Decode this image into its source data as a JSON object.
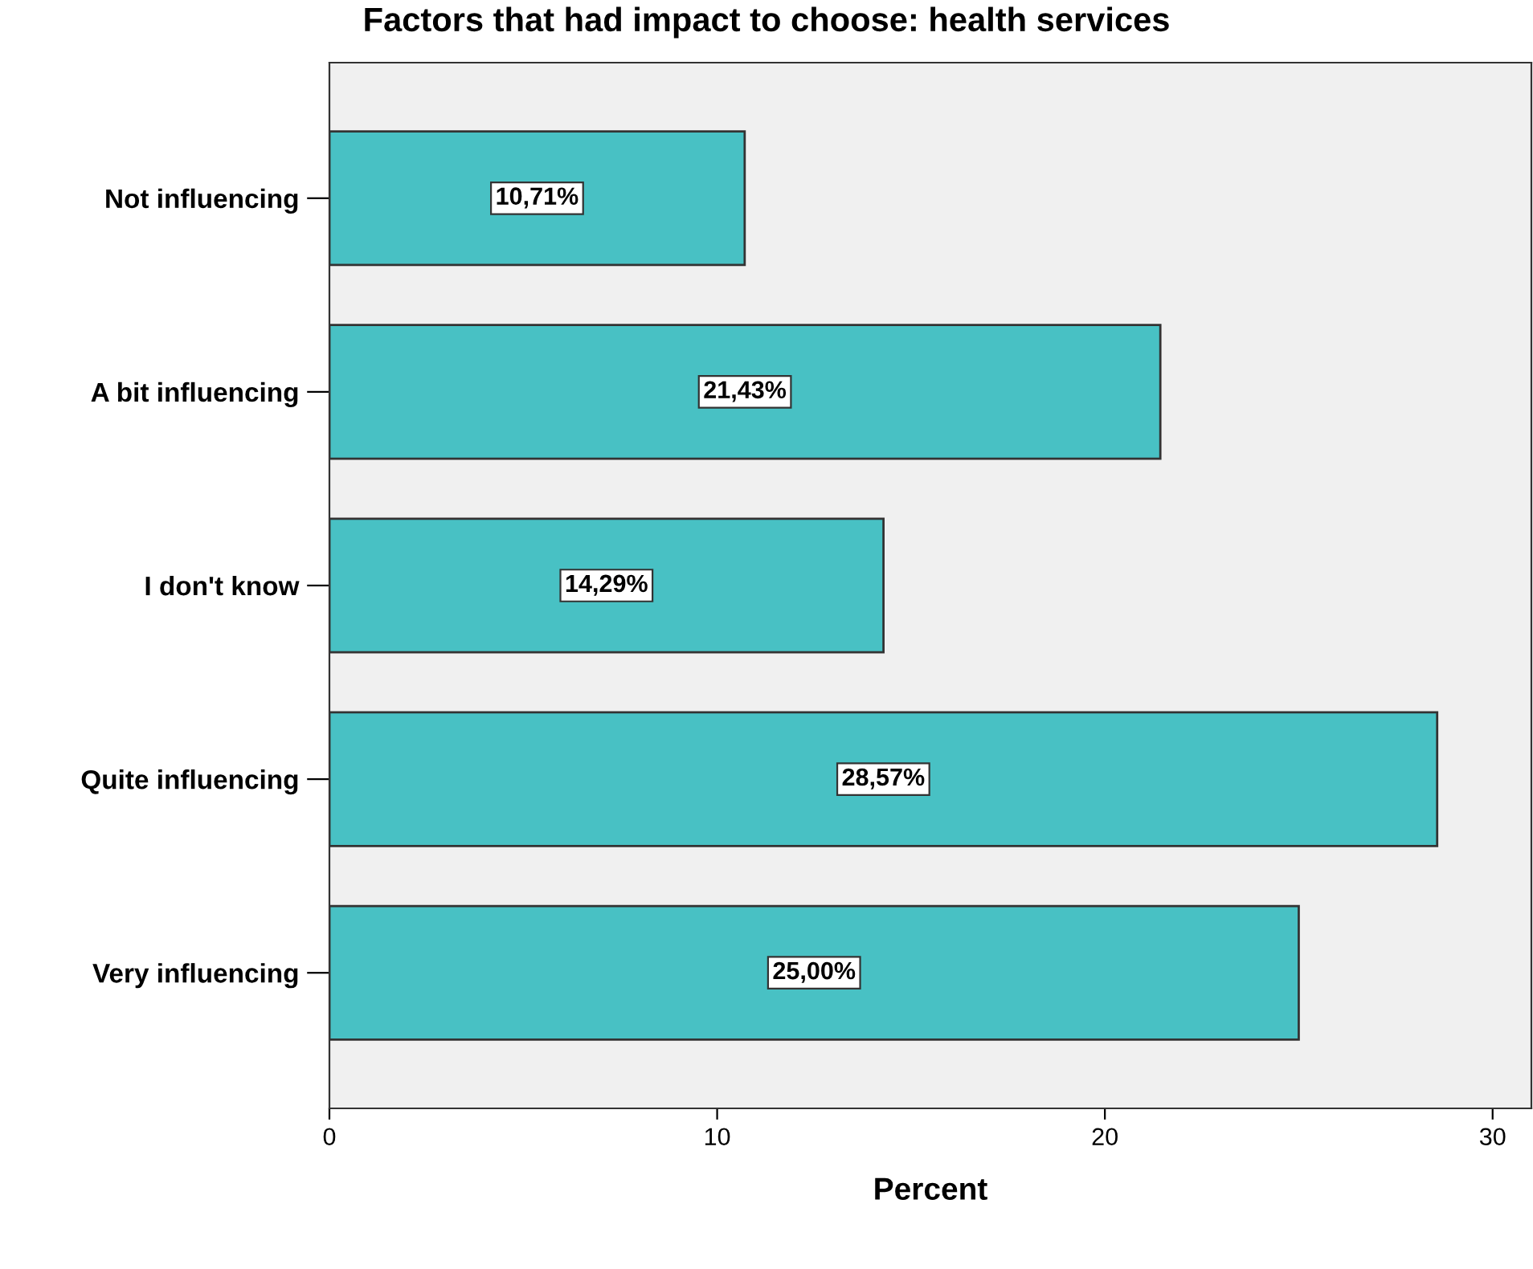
{
  "chart_data": {
    "type": "bar",
    "orientation": "horizontal",
    "title": "Factors that had impact to choose: health services",
    "xlabel": "Percent",
    "categories": [
      "Not influencing",
      "A bit influencing",
      "I don't know",
      "Quite influencing",
      "Very influencing"
    ],
    "values": [
      10.71,
      21.43,
      14.29,
      28.57,
      25.0
    ],
    "value_labels": [
      "10,71%",
      "21,43%",
      "14,29%",
      "28,57%",
      "25,00%"
    ],
    "color": "#48c1c4",
    "xlim": [
      0,
      31
    ],
    "xticks": [
      0,
      10,
      20,
      30
    ],
    "grid": false,
    "legend": false
  }
}
